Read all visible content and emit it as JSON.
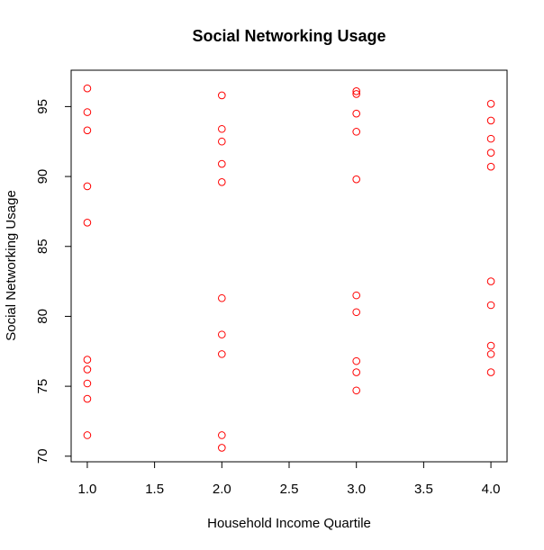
{
  "chart_data": {
    "type": "scatter",
    "title": "Social Networking Usage",
    "xlabel": "Household Income Quartile",
    "ylabel": "Social Networking Usage",
    "xlim": [
      0.88,
      4.12
    ],
    "ylim": [
      69.6,
      97.6
    ],
    "x_ticks": [
      1.0,
      1.5,
      2.0,
      2.5,
      3.0,
      3.5,
      4.0
    ],
    "x_tick_labels": [
      "1.0",
      "1.5",
      "2.0",
      "2.5",
      "3.0",
      "3.5",
      "4.0"
    ],
    "y_ticks": [
      70,
      75,
      80,
      85,
      90,
      95
    ],
    "y_tick_labels": [
      "70",
      "75",
      "80",
      "85",
      "90",
      "95"
    ],
    "grid": false,
    "marker": "open-circle",
    "point_color": "#ff0000",
    "series": [
      {
        "points": [
          {
            "x": 1,
            "y": 96.3
          },
          {
            "x": 1,
            "y": 94.6
          },
          {
            "x": 1,
            "y": 93.3
          },
          {
            "x": 1,
            "y": 89.3
          },
          {
            "x": 1,
            "y": 86.7
          },
          {
            "x": 1,
            "y": 76.9
          },
          {
            "x": 1,
            "y": 76.2
          },
          {
            "x": 1,
            "y": 75.2
          },
          {
            "x": 1,
            "y": 74.1
          },
          {
            "x": 1,
            "y": 71.5
          },
          {
            "x": 2,
            "y": 95.8
          },
          {
            "x": 2,
            "y": 93.4
          },
          {
            "x": 2,
            "y": 92.5
          },
          {
            "x": 2,
            "y": 90.9
          },
          {
            "x": 2,
            "y": 89.6
          },
          {
            "x": 2,
            "y": 81.3
          },
          {
            "x": 2,
            "y": 78.7
          },
          {
            "x": 2,
            "y": 77.3
          },
          {
            "x": 2,
            "y": 71.5
          },
          {
            "x": 2,
            "y": 70.6
          },
          {
            "x": 3,
            "y": 96.1
          },
          {
            "x": 3,
            "y": 95.9
          },
          {
            "x": 3,
            "y": 94.5
          },
          {
            "x": 3,
            "y": 93.2
          },
          {
            "x": 3,
            "y": 89.8
          },
          {
            "x": 3,
            "y": 81.5
          },
          {
            "x": 3,
            "y": 80.3
          },
          {
            "x": 3,
            "y": 76.8
          },
          {
            "x": 3,
            "y": 76.0
          },
          {
            "x": 3,
            "y": 74.7
          },
          {
            "x": 4,
            "y": 95.2
          },
          {
            "x": 4,
            "y": 94.0
          },
          {
            "x": 4,
            "y": 92.7
          },
          {
            "x": 4,
            "y": 91.7
          },
          {
            "x": 4,
            "y": 90.7
          },
          {
            "x": 4,
            "y": 82.5
          },
          {
            "x": 4,
            "y": 80.8
          },
          {
            "x": 4,
            "y": 77.9
          },
          {
            "x": 4,
            "y": 77.3
          },
          {
            "x": 4,
            "y": 76.0
          }
        ]
      }
    ]
  }
}
